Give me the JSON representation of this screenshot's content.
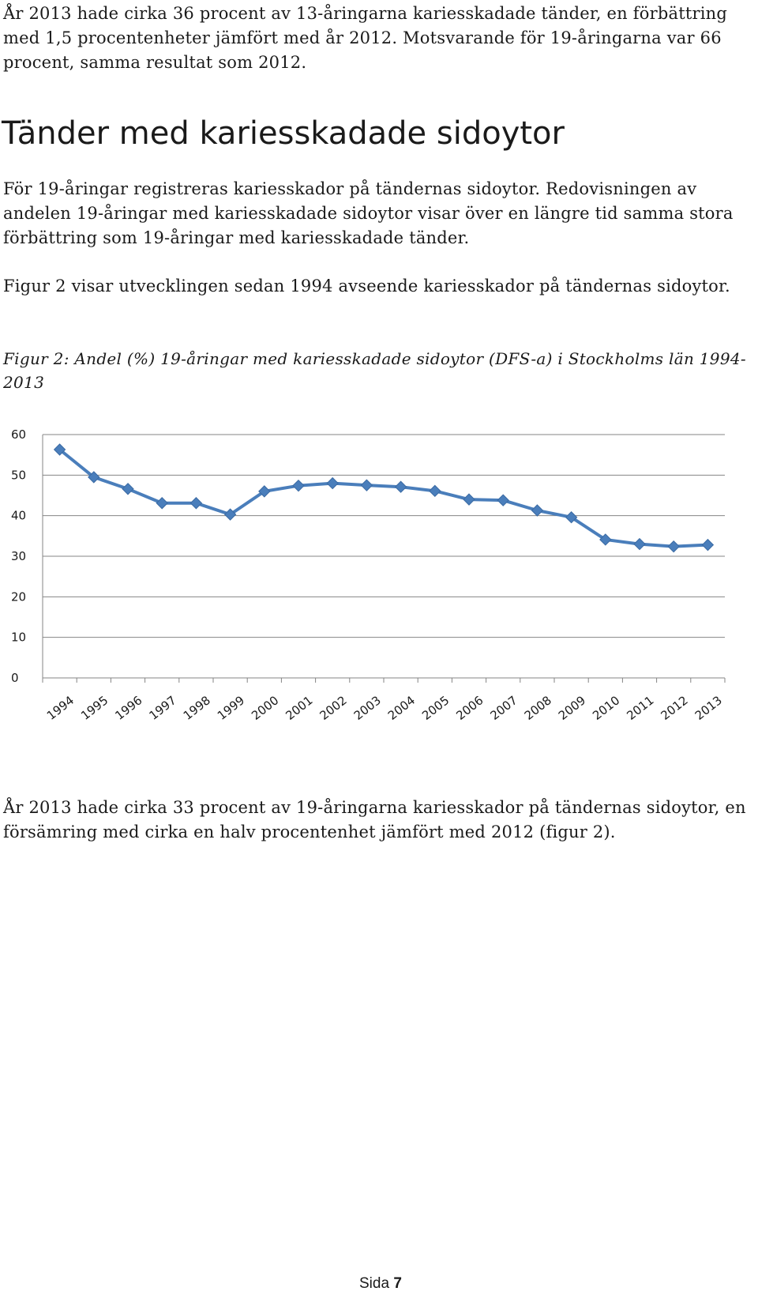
{
  "intro_paragraph": "År 2013 hade cirka 36 procent av 13-åringarna kariesskadade tänder, en förbättring med 1,5 procentenheter jämfört med år 2012. Motsvarande för 19-åringarna var 66 procent, samma resultat som 2012.",
  "section_heading": "Tänder med kariesskadade sidoytor",
  "body_paragraph_1": "För 19-åringar registreras kariesskador på tändernas sidoytor. Redovisningen av andelen 19-åringar med kariesskadade sidoytor visar över en längre tid samma stora förbättring som 19-åringar med kariesskadade tänder.",
  "body_paragraph_2": "Figur 2 visar utvecklingen sedan 1994 avseende kariesskador på tändernas sidoytor.",
  "figure_caption": "Figur 2: Andel (%) 19-åringar med kariesskadade sidoytor (DFS-a) i Stockholms län 1994-2013",
  "conclusion_paragraph": "År 2013 hade cirka 33 procent av 19-åringarna kariesskador på tändernas sidoytor, en försämring med cirka en halv procentenhet jämfört med 2012 (figur 2).",
  "page_number": {
    "label": "Sida",
    "number": "7"
  },
  "chart_data": {
    "type": "line",
    "title": "",
    "xlabel": "",
    "ylabel": "",
    "categories": [
      "1994",
      "1995",
      "1996",
      "1997",
      "1998",
      "1999",
      "2000",
      "2001",
      "2002",
      "2003",
      "2004",
      "2005",
      "2006",
      "2007",
      "2008",
      "2009",
      "2010",
      "2011",
      "2012",
      "2013"
    ],
    "series": [
      {
        "values": [
          56.3,
          49.5,
          46.6,
          43.1,
          43.1,
          40.3,
          46.0,
          47.4,
          48.0,
          47.5,
          47.1,
          46.1,
          44.0,
          43.8,
          41.3,
          39.6,
          34.1,
          33.0,
          32.4,
          32.8
        ],
        "color": "#4a7ebb",
        "marker": "diamond"
      }
    ],
    "ylim": [
      0,
      60
    ],
    "yticks": [
      "0",
      "10",
      "20",
      "30",
      "40",
      "50",
      "60"
    ],
    "grid": true,
    "gridline_color": "#858585",
    "legend": "none"
  }
}
